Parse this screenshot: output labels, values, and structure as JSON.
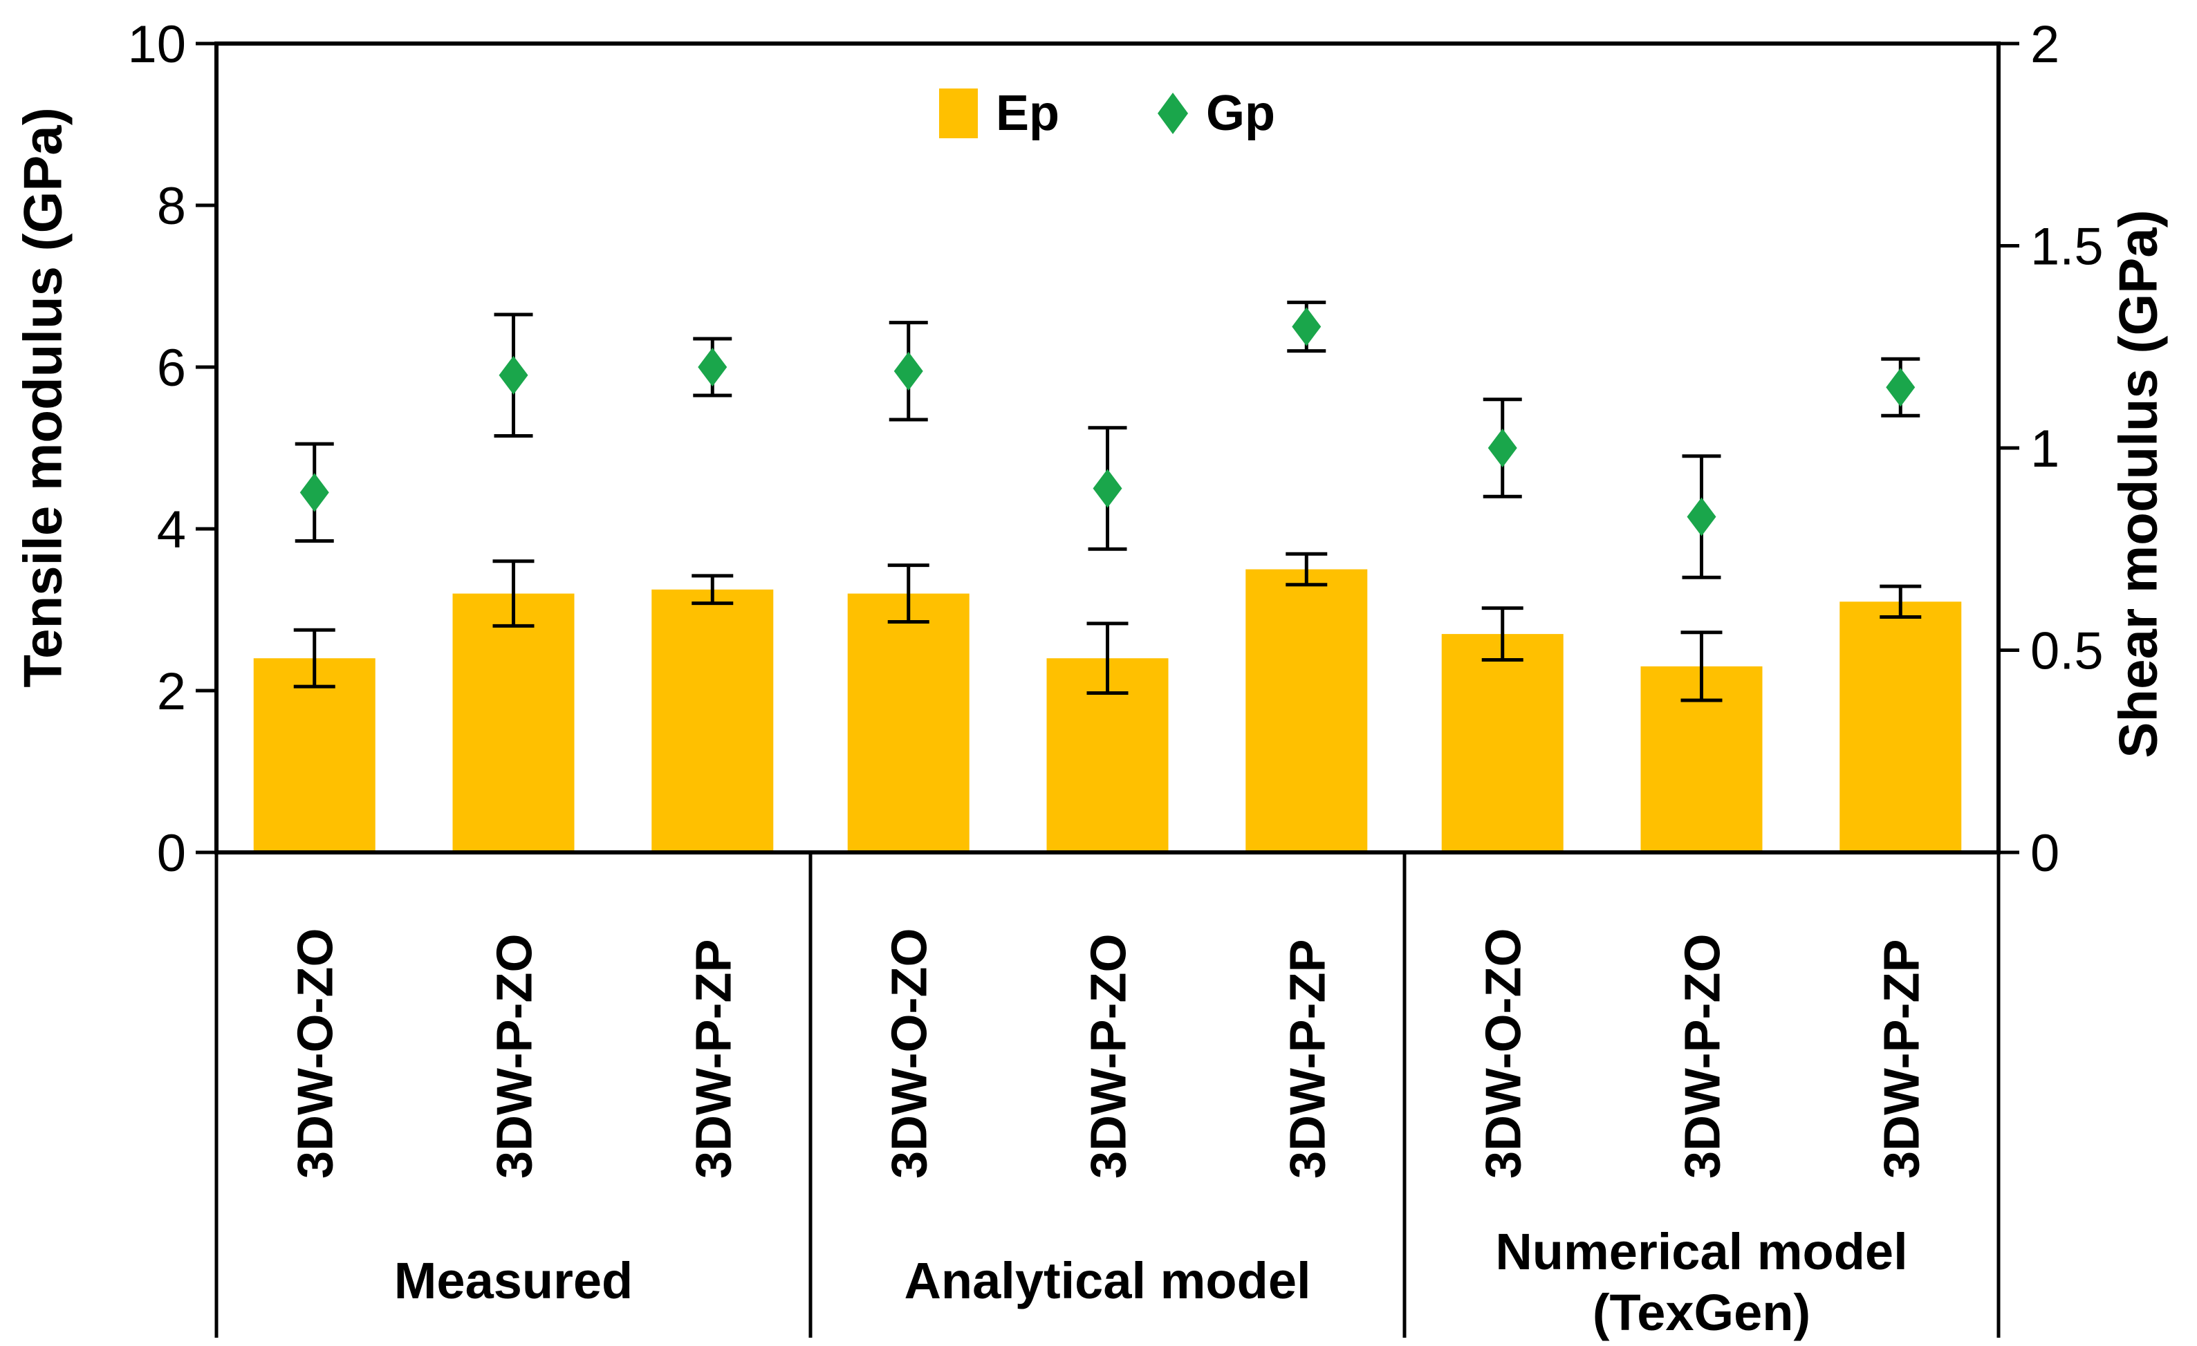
{
  "chart_data": {
    "type": "bar",
    "title": "",
    "grid": false,
    "legend_position": "top-center",
    "left_axis": {
      "label": "Tensile modulus (GPa)",
      "min": 0,
      "max": 10,
      "ticks": [
        "0",
        "2",
        "4",
        "6",
        "8",
        "10"
      ]
    },
    "right_axis": {
      "label": "Shear modulus (GPa)",
      "min": 0,
      "max": 2,
      "ticks": [
        "0",
        "0.5",
        "1",
        "1.5",
        "2"
      ]
    },
    "categories": [
      "3DW-O-ZO",
      "3DW-P-ZO",
      "3DW-P-ZP"
    ],
    "groups": [
      {
        "label_lines": [
          "Measured"
        ]
      },
      {
        "label_lines": [
          "Analytical model"
        ]
      },
      {
        "label_lines": [
          "Numerical model",
          "(TexGen)"
        ]
      }
    ],
    "series": [
      {
        "name": "Ep",
        "marker": "square",
        "axis": "left",
        "color": "#FFC000",
        "values": [
          2.4,
          3.2,
          3.25,
          3.2,
          2.4,
          3.5,
          2.7,
          2.3,
          3.1
        ],
        "errors": [
          0.35,
          0.4,
          0.17,
          0.35,
          0.43,
          0.19,
          0.32,
          0.42,
          0.19
        ]
      },
      {
        "name": "Gp",
        "marker": "diamond",
        "axis": "right",
        "color": "#1AA64B",
        "values": [
          0.89,
          1.18,
          1.2,
          1.19,
          0.9,
          1.3,
          1.0,
          0.83,
          1.15
        ],
        "errors": [
          0.12,
          0.15,
          0.07,
          0.12,
          0.15,
          0.06,
          0.12,
          0.15,
          0.07
        ]
      }
    ]
  }
}
